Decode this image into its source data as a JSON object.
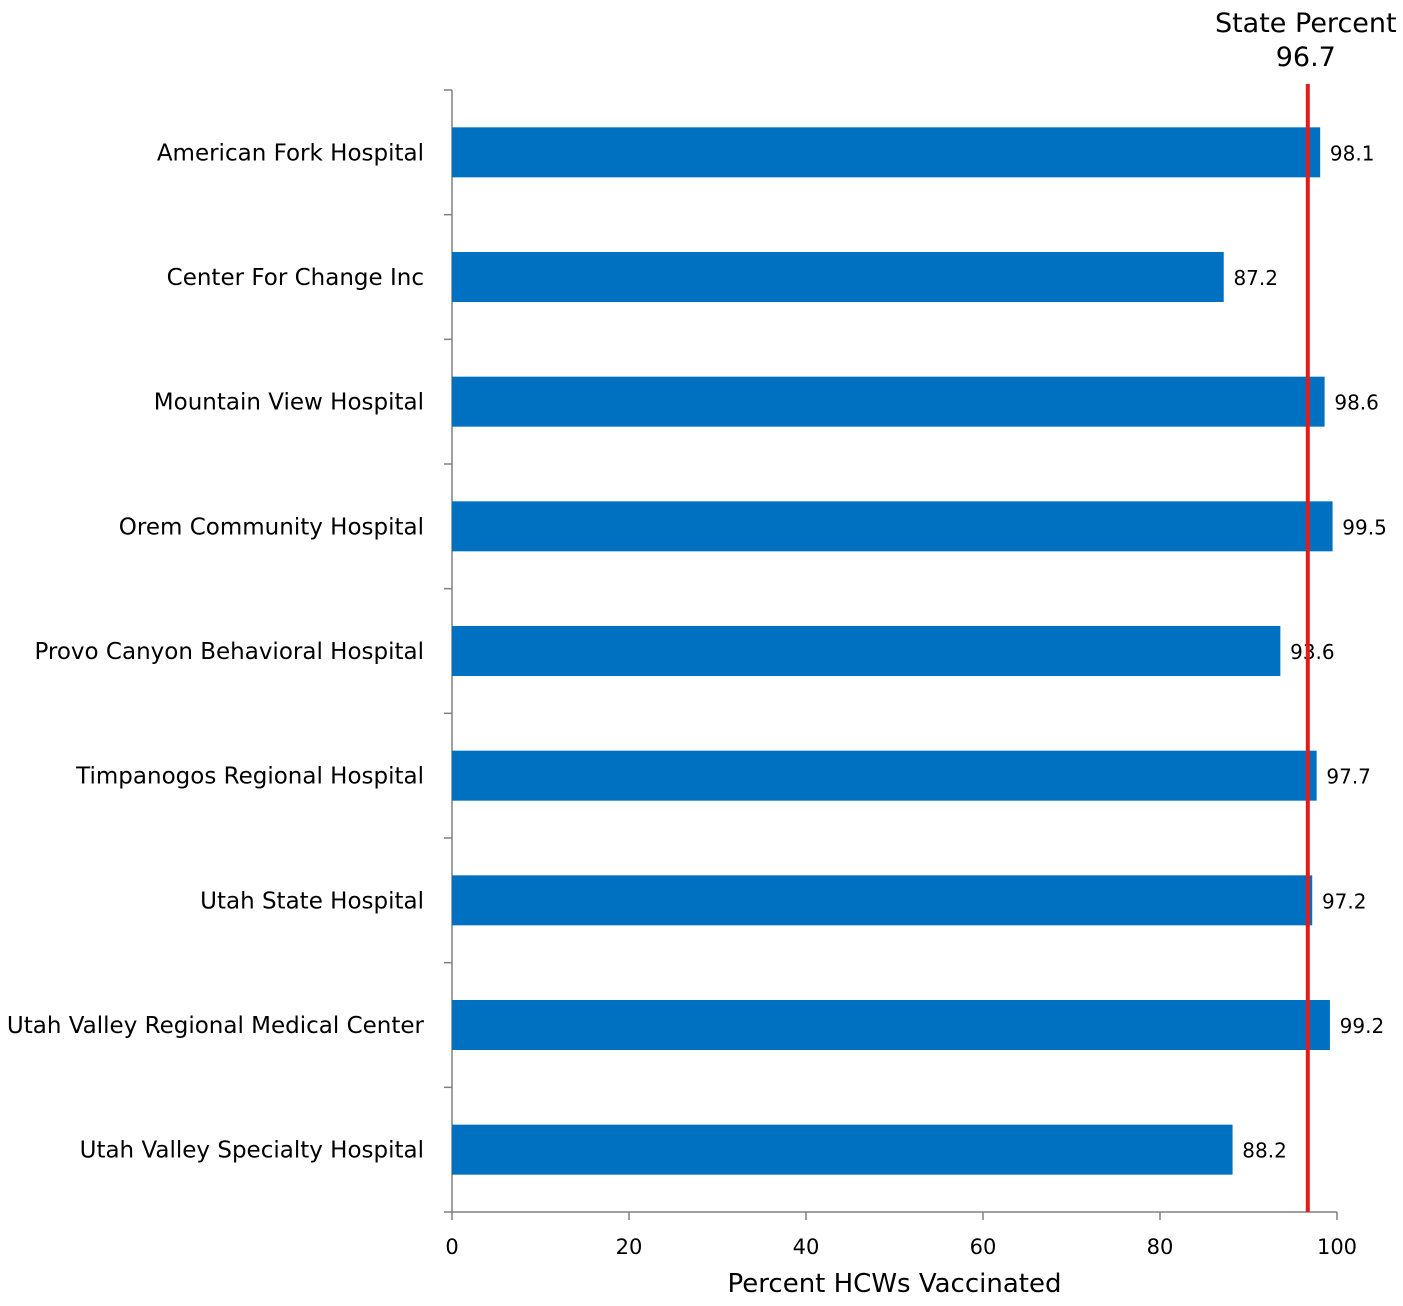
{
  "colors": {
    "bar": "#0070C0",
    "reference_line": "#E31B1B",
    "axis": "#808080"
  },
  "chart_data": {
    "type": "bar",
    "orientation": "horizontal",
    "title": "",
    "xlabel": "Percent HCWs Vaccinated",
    "ylabel": "",
    "xlim": [
      0,
      100
    ],
    "xticks": [
      0,
      20,
      40,
      60,
      80,
      100
    ],
    "grid": false,
    "legend": "none",
    "categories": [
      "American Fork Hospital",
      "Center For Change Inc",
      "Mountain View Hospital",
      "Orem Community Hospital",
      "Provo Canyon Behavioral Hospital",
      "Timpanogos Regional Hospital",
      "Utah State Hospital",
      "Utah Valley Regional Medical Center",
      "Utah Valley Specialty Hospital"
    ],
    "values": [
      98.1,
      87.2,
      98.6,
      99.5,
      93.6,
      97.7,
      97.2,
      99.2,
      88.2
    ],
    "reference_line": {
      "label": "State Percent",
      "value": 96.7,
      "value_label": "96.7"
    }
  }
}
